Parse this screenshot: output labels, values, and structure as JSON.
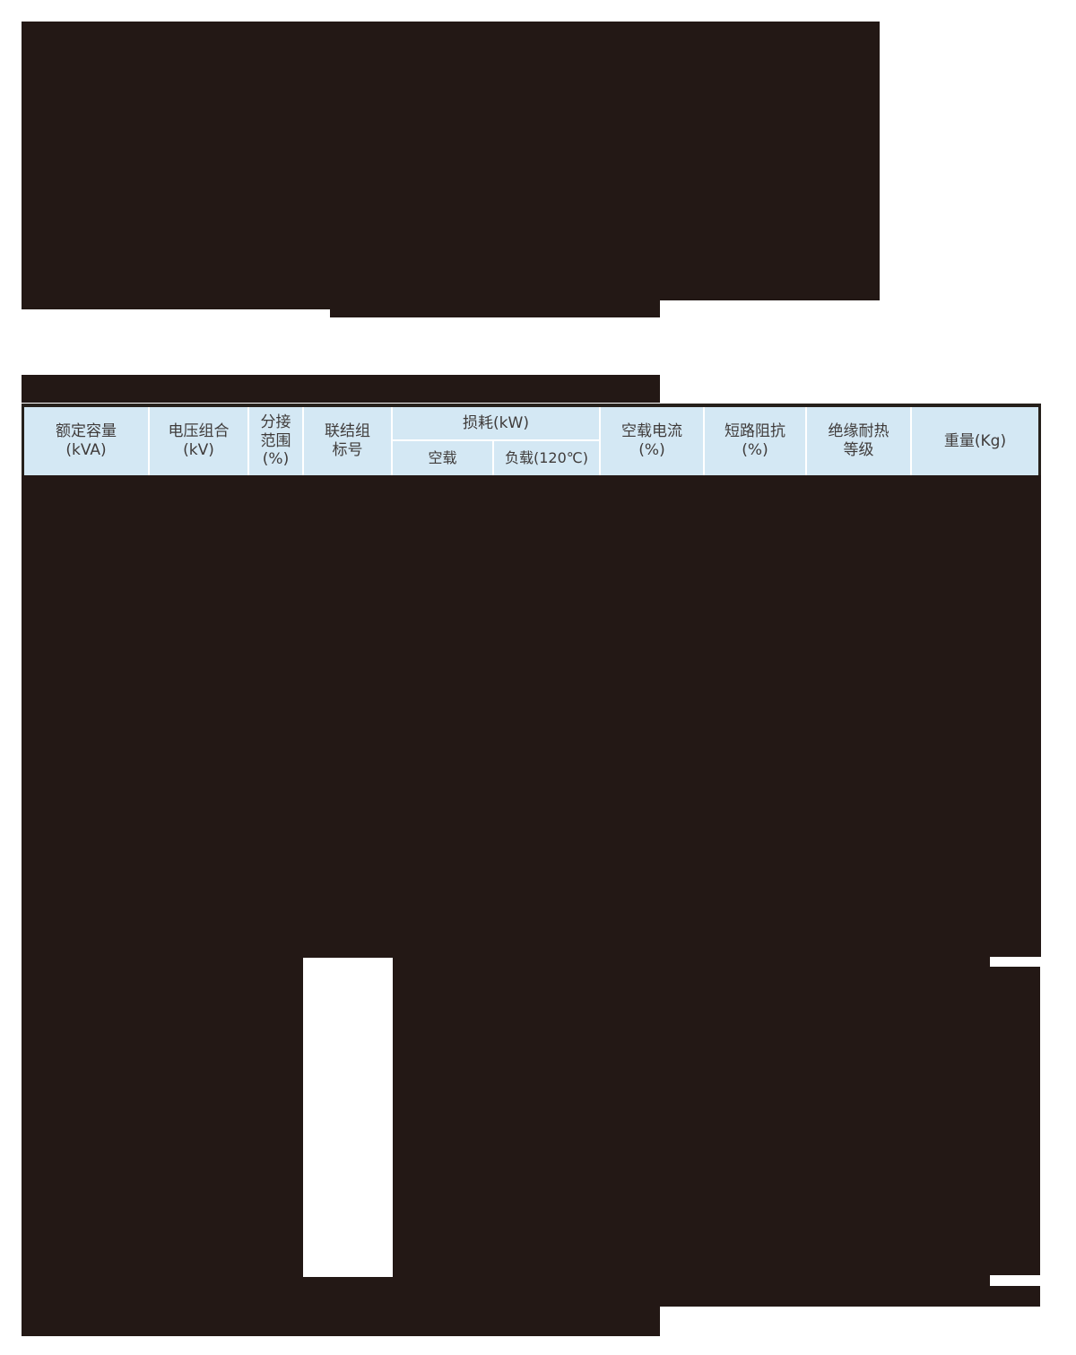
{
  "colors": {
    "ink": "#231815",
    "header_background": "#d4e8f4",
    "header_border": "#26201b",
    "header_text": "#3f3b3a",
    "cell_separator": "#ffffff",
    "page_background": "#ffffff"
  },
  "table_header": {
    "columns": [
      {
        "key": "rated-capacity",
        "lines": [
          "额定容量",
          "(kVA)"
        ]
      },
      {
        "key": "voltage-combination",
        "lines": [
          "电压组合",
          "(kV)"
        ]
      },
      {
        "key": "tapping-range",
        "lines": [
          "分接",
          "范围",
          "(%)"
        ]
      },
      {
        "key": "vector-group",
        "lines": [
          "联结组",
          "标号"
        ]
      },
      {
        "key": "no-load-current",
        "lines": [
          "空载电流",
          "(%)"
        ]
      },
      {
        "key": "short-circuit-impedance",
        "lines": [
          "短路阻抗",
          "(%)"
        ]
      },
      {
        "key": "insulation-heat-class",
        "lines": [
          "绝缘耐热",
          "等级"
        ]
      },
      {
        "key": "weight",
        "lines": [
          "重量(Kg)"
        ]
      }
    ],
    "loss_group": {
      "label": "损耗(kW)",
      "sub": [
        "空载",
        "负载(120℃)"
      ]
    }
  }
}
